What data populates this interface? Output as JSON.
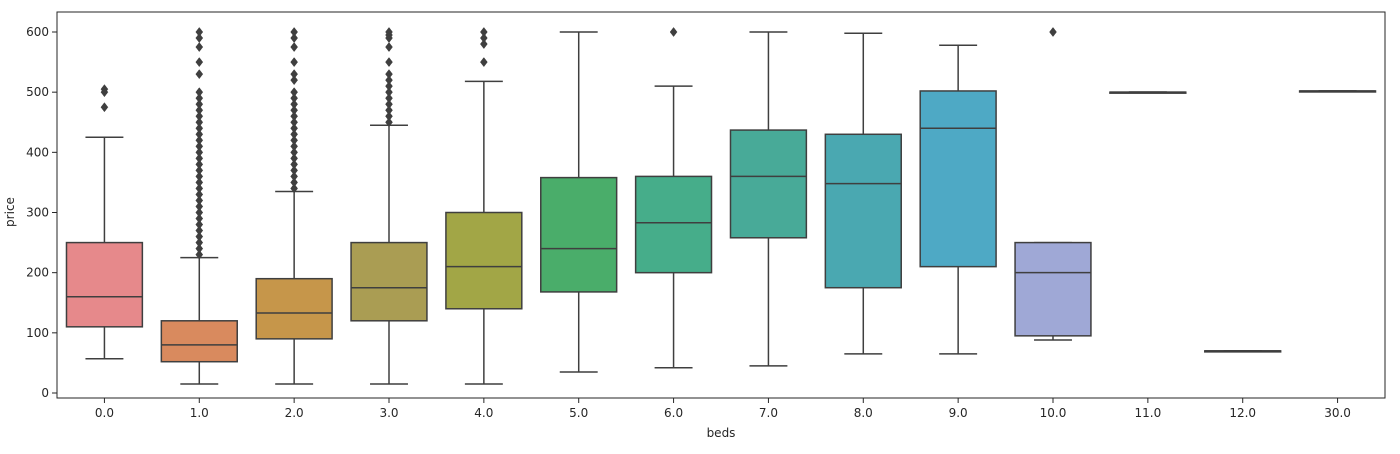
{
  "chart_data": {
    "type": "box",
    "title": "",
    "xlabel": "beds",
    "ylabel": "price",
    "ylim": [
      -15,
      615
    ],
    "yticks": [
      0,
      100,
      200,
      300,
      400,
      500,
      600
    ],
    "grid": false,
    "legend": "none",
    "categories": [
      "0.0",
      "1.0",
      "2.0",
      "3.0",
      "4.0",
      "5.0",
      "6.0",
      "7.0",
      "8.0",
      "9.0",
      "10.0",
      "11.0",
      "12.0",
      "30.0"
    ],
    "boxes": [
      {
        "category": "0.0",
        "color": "#e6898b",
        "whisker_low": 57,
        "q1": 110,
        "median": 160,
        "q3": 250,
        "whisker_high": 425,
        "outliers": [
          475,
          500,
          505
        ]
      },
      {
        "category": "1.0",
        "color": "#d98a5e",
        "whisker_low": 15,
        "q1": 52,
        "median": 80,
        "q3": 120,
        "whisker_high": 225,
        "outliers": [
          230,
          240,
          250,
          260,
          270,
          280,
          290,
          300,
          310,
          320,
          330,
          340,
          350,
          360,
          370,
          380,
          390,
          400,
          410,
          420,
          430,
          440,
          450,
          460,
          470,
          480,
          490,
          500,
          530,
          550,
          575,
          590,
          600
        ]
      },
      {
        "category": "2.0",
        "color": "#c6964a",
        "whisker_low": 15,
        "q1": 90,
        "median": 133,
        "q3": 190,
        "whisker_high": 335,
        "outliers": [
          340,
          350,
          360,
          370,
          380,
          390,
          400,
          410,
          420,
          430,
          440,
          450,
          460,
          470,
          480,
          490,
          500,
          520,
          530,
          550,
          575,
          590,
          600
        ]
      },
      {
        "category": "3.0",
        "color": "#aa9d53",
        "whisker_low": 15,
        "q1": 120,
        "median": 175,
        "q3": 250,
        "whisker_high": 445,
        "outliers": [
          450,
          460,
          470,
          480,
          490,
          500,
          510,
          520,
          530,
          550,
          575,
          590,
          595,
          600
        ]
      },
      {
        "category": "4.0",
        "color": "#a2a646",
        "whisker_low": 15,
        "q1": 140,
        "median": 210,
        "q3": 300,
        "whisker_high": 518,
        "outliers": [
          550,
          580,
          590,
          600
        ]
      },
      {
        "category": "5.0",
        "color": "#4aad6a",
        "whisker_low": 35,
        "q1": 168,
        "median": 240,
        "q3": 358,
        "whisker_high": 600,
        "outliers": []
      },
      {
        "category": "6.0",
        "color": "#46ad8a",
        "whisker_low": 42,
        "q1": 200,
        "median": 283,
        "q3": 360,
        "whisker_high": 510,
        "outliers": [
          600
        ]
      },
      {
        "category": "7.0",
        "color": "#48aa98",
        "whisker_low": 45,
        "q1": 258,
        "median": 360,
        "q3": 437,
        "whisker_high": 600,
        "outliers": []
      },
      {
        "category": "8.0",
        "color": "#4aa8b1",
        "whisker_low": 65,
        "q1": 175,
        "median": 348,
        "q3": 430,
        "whisker_high": 598,
        "outliers": []
      },
      {
        "category": "9.0",
        "color": "#4ea9c5",
        "whisker_low": 65,
        "q1": 210,
        "median": 440,
        "q3": 502,
        "whisker_high": 578,
        "outliers": []
      },
      {
        "category": "10.0",
        "color": "#9fa8d6",
        "whisker_low": 88,
        "q1": 95,
        "median": 200,
        "q3": 250,
        "whisker_high": 250,
        "outliers": [
          600
        ]
      },
      {
        "category": "11.0",
        "color": "#c49ed2",
        "whisker_low": 500,
        "q1": 500,
        "median": 500,
        "q3": 500,
        "whisker_high": 500,
        "outliers": []
      },
      {
        "category": "12.0",
        "color": "#df8fc6",
        "whisker_low": 70,
        "q1": 70,
        "median": 70,
        "q3": 70,
        "whisker_high": 70,
        "outliers": []
      },
      {
        "category": "30.0",
        "color": "#e68bab",
        "whisker_low": 502,
        "q1": 502,
        "median": 502,
        "q3": 502,
        "whisker_high": 502,
        "outliers": []
      }
    ]
  }
}
